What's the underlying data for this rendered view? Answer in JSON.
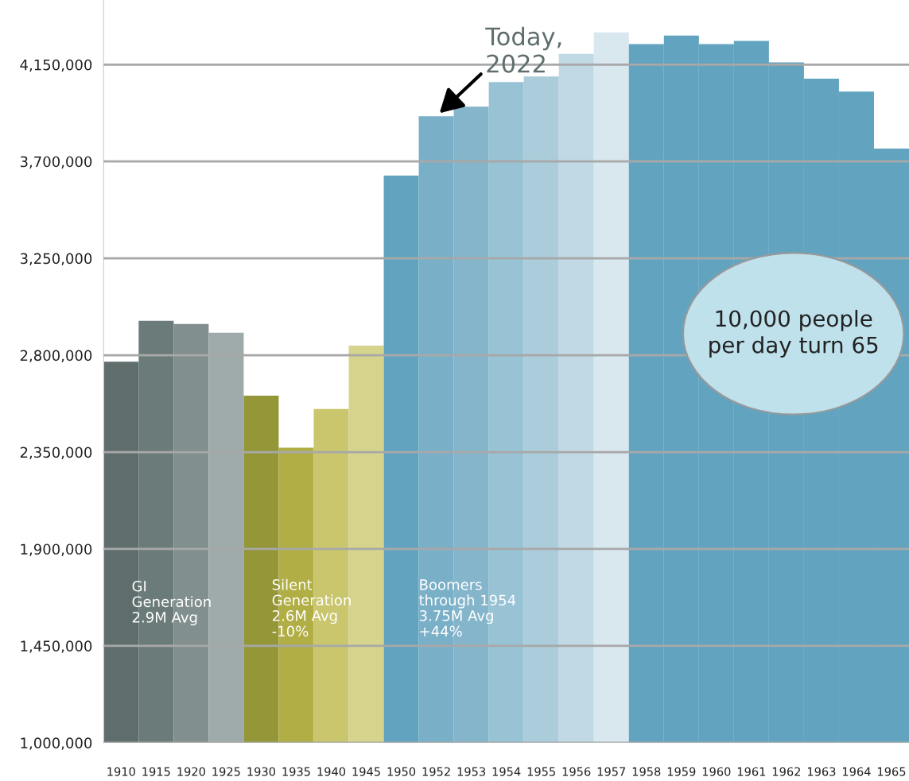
{
  "chart_data": {
    "type": "bar",
    "categories": [
      "1910",
      "1915",
      "1920",
      "1925",
      "1930",
      "1935",
      "1940",
      "1945",
      "1950",
      "1952",
      "1953",
      "1954",
      "1955",
      "1956",
      "1957",
      "1958",
      "1959",
      "1960",
      "1961",
      "1962",
      "1963",
      "1964",
      "1965"
    ],
    "values": [
      2770000,
      2960000,
      2945000,
      2905000,
      2612000,
      2370000,
      2550000,
      2845000,
      3634000,
      3910000,
      3955000,
      4069000,
      4095000,
      4200000,
      4300000,
      4245000,
      4285000,
      4245000,
      4260000,
      4160000,
      4085000,
      4025000,
      3760000
    ],
    "colors": [
      "#5f6e6d",
      "#6b7b7a",
      "#818f8e",
      "#9faaaa",
      "#959638",
      "#b0ae44",
      "#c9c66d",
      "#d6d48c",
      "#62a4c0",
      "#79afc7",
      "#84b5cb",
      "#98c3d5",
      "#abcddb",
      "#c0d9e4",
      "#d9e7ef",
      "#62a4c0",
      "#62a4c0",
      "#62a4c0",
      "#62a4c0",
      "#62a4c0",
      "#62a4c0",
      "#62a4c0",
      "#62a4c0"
    ],
    "ylim": [
      1000000,
      4450000
    ],
    "yticks": [
      {
        "value": 1000000,
        "label": "1,000,000"
      },
      {
        "value": 1450000,
        "label": "1,450,000"
      },
      {
        "value": 1900000,
        "label": "1,900,000"
      },
      {
        "value": 2350000,
        "label": "2,350,000"
      },
      {
        "value": 2800000,
        "label": "2,800,000"
      },
      {
        "value": 3250000,
        "label": "3,250,000"
      },
      {
        "value": 3700000,
        "label": "3,700,000"
      },
      {
        "value": 4150000,
        "label": "4,150,000"
      }
    ],
    "grid": "y",
    "annotations": [
      {
        "text": "Today,\n2022",
        "x": "1952",
        "y": 3910000
      },
      "GI\nGeneration\n2.9M Avg",
      "Silent\nGeneration\n2.6M Avg\n-10%",
      "Boomers\nthrough 1954\n3.75M Avg\n+44%",
      "10,000 people\nper day turn 65"
    ]
  }
}
